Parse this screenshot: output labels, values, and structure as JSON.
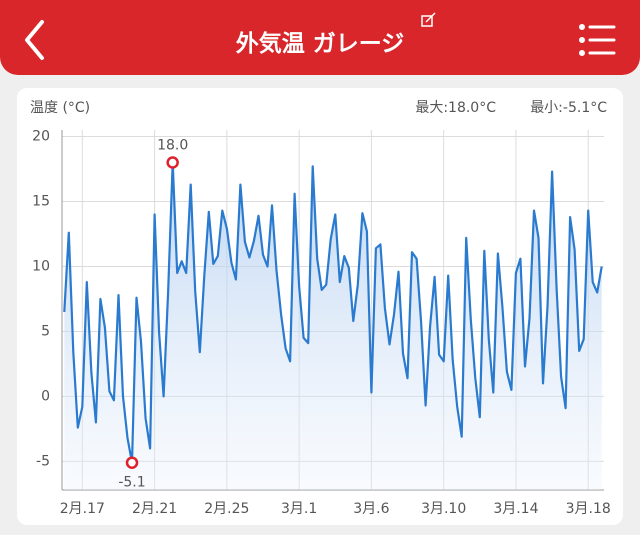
{
  "header": {
    "title": "外気温 ガレージ"
  },
  "chart_data": {
    "type": "line",
    "y_label": "温度 (°C)",
    "max_label": "最大:18.0°C",
    "min_label": "最小:-5.1°C",
    "max_point_label": "18.0",
    "min_point_label": "-5.1",
    "categories": [
      null,
      null,
      null,
      null,
      "2月.17",
      null,
      null,
      null,
      null,
      null,
      null,
      null,
      null,
      null,
      null,
      null,
      null,
      null,
      null,
      null,
      "2月.21",
      null,
      null,
      null,
      null,
      null,
      null,
      null,
      null,
      null,
      null,
      null,
      null,
      null,
      null,
      null,
      "2月.25",
      null,
      null,
      null,
      null,
      null,
      null,
      null,
      null,
      null,
      null,
      null,
      null,
      null,
      null,
      null,
      "3月.1",
      null,
      null,
      null,
      null,
      null,
      null,
      null,
      null,
      null,
      null,
      null,
      null,
      null,
      null,
      null,
      "3月.6",
      null,
      null,
      null,
      null,
      null,
      null,
      null,
      null,
      null,
      null,
      null,
      null,
      null,
      null,
      null,
      "3月.10",
      null,
      null,
      null,
      null,
      null,
      null,
      null,
      null,
      null,
      null,
      null,
      null,
      null,
      null,
      null,
      "3月.14",
      null,
      null,
      null,
      null,
      null,
      null,
      null,
      null,
      null,
      null,
      null,
      null,
      null,
      null,
      null,
      "3月.18",
      null,
      null,
      null
    ],
    "series": [
      {
        "name": "温度",
        "color": "#2a7bd0",
        "values": [
          6.5,
          12.6,
          3.4,
          -2.4,
          -0.8,
          8.8,
          1.8,
          -2.0,
          7.5,
          5.3,
          0.4,
          -0.3,
          7.8,
          0,
          -3.2,
          -5.1,
          7.6,
          4.2,
          -1.7,
          -4,
          14,
          4.9,
          0,
          8,
          18.0,
          9.5,
          10.4,
          9.5,
          16.3,
          8.1,
          3.4,
          9.3,
          14.2,
          10.2,
          10.8,
          14.3,
          12.9,
          10.3,
          9,
          16.3,
          11.9,
          10.7,
          12,
          13.9,
          10.9,
          10,
          14.7,
          9.7,
          6.3,
          3.7,
          2.7,
          15.6,
          8.5,
          4.5,
          4.1,
          17.7,
          10.6,
          8.2,
          8.6,
          12.1,
          14,
          8.8,
          10.8,
          9.9,
          5.8,
          8.6,
          14.1,
          12.7,
          0.3,
          11.4,
          11.7,
          6.8,
          4,
          6.3,
          9.6,
          3.3,
          1.4,
          11.1,
          10.6,
          5.7,
          -0.7,
          5.4,
          9.2,
          3.2,
          2.7,
          9.3,
          2.8,
          -0.8,
          -3.1,
          12.2,
          5.9,
          1.4,
          -1.6,
          11.2,
          4.4,
          0.3,
          11,
          6.9,
          1.9,
          0.5,
          9.5,
          10.6,
          2.3,
          6,
          14.3,
          12.2,
          1,
          6.9,
          17.3,
          8.3,
          1.5,
          -0.9,
          13.8,
          11.3,
          3.5,
          4.4,
          14.3,
          8.8,
          8,
          10
        ]
      }
    ],
    "ylim": [
      -7.2,
      20.5
    ],
    "yticks": [
      -5,
      0,
      5,
      10,
      15,
      20
    ],
    "grid": true,
    "marker_color": "#e0202a"
  }
}
